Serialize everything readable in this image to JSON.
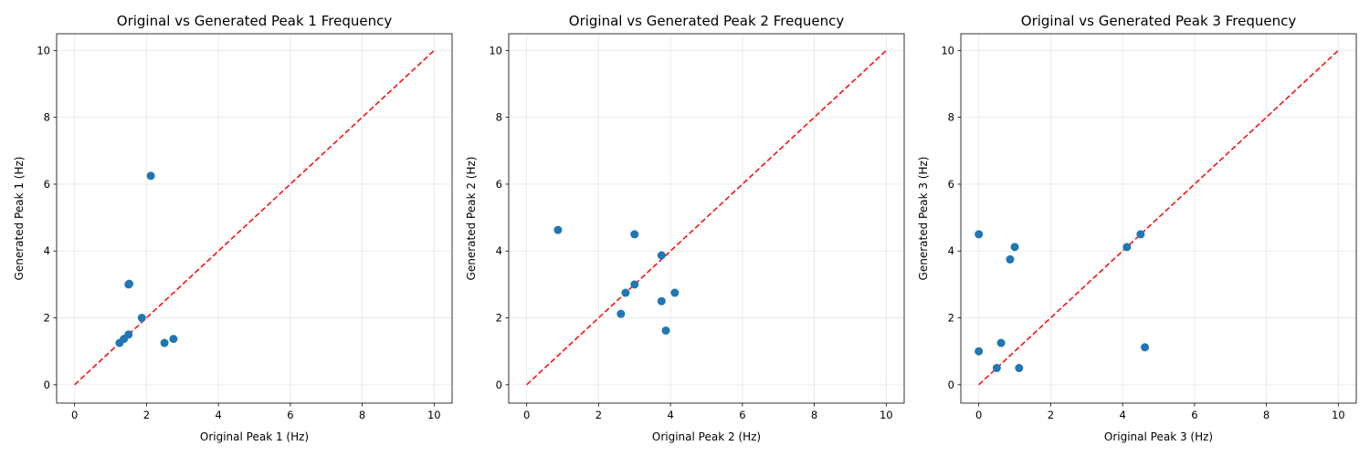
{
  "chart_data": [
    {
      "type": "scatter",
      "title": "Original vs Generated Peak 1 Frequency",
      "xlabel": "Original Peak 1 (Hz)",
      "ylabel": "Generated Peak 1 (Hz)",
      "xlim": [
        -0.5,
        10.5
      ],
      "ylim": [
        -0.55,
        10.5
      ],
      "xticks": [
        "0",
        "2",
        "4",
        "6",
        "8",
        "10"
      ],
      "yticks": [
        "0",
        "2",
        "4",
        "6",
        "8",
        "10"
      ],
      "grid": true,
      "reference_line": {
        "x": [
          0,
          10
        ],
        "y": [
          0,
          10
        ],
        "style": "dashed",
        "color": "#ff0000"
      },
      "point_color": "#1f77b4",
      "points": [
        {
          "x": 2.12,
          "y": 6.25
        },
        {
          "x": 1.5,
          "y": 3.0
        },
        {
          "x": 1.52,
          "y": 3.02
        },
        {
          "x": 1.87,
          "y": 2.0
        },
        {
          "x": 1.5,
          "y": 1.5
        },
        {
          "x": 1.37,
          "y": 1.37
        },
        {
          "x": 1.25,
          "y": 1.25
        },
        {
          "x": 2.5,
          "y": 1.25
        },
        {
          "x": 2.75,
          "y": 1.37
        }
      ]
    },
    {
      "type": "scatter",
      "title": "Original vs Generated Peak 2 Frequency",
      "xlabel": "Original Peak 2 (Hz)",
      "ylabel": "Generated Peak 2 (Hz)",
      "xlim": [
        -0.5,
        10.5
      ],
      "ylim": [
        -0.55,
        10.5
      ],
      "xticks": [
        "0",
        "2",
        "4",
        "6",
        "8",
        "10"
      ],
      "yticks": [
        "0",
        "2",
        "4",
        "6",
        "8",
        "10"
      ],
      "grid": true,
      "reference_line": {
        "x": [
          0,
          10
        ],
        "y": [
          0,
          10
        ],
        "style": "dashed",
        "color": "#ff0000"
      },
      "point_color": "#1f77b4",
      "points": [
        {
          "x": 0.87,
          "y": 4.63
        },
        {
          "x": 3.0,
          "y": 4.5
        },
        {
          "x": 3.75,
          "y": 3.87
        },
        {
          "x": 3.0,
          "y": 3.0
        },
        {
          "x": 2.75,
          "y": 2.75
        },
        {
          "x": 4.12,
          "y": 2.75
        },
        {
          "x": 3.75,
          "y": 2.5
        },
        {
          "x": 2.62,
          "y": 2.12
        },
        {
          "x": 3.87,
          "y": 1.62
        }
      ]
    },
    {
      "type": "scatter",
      "title": "Original vs Generated Peak 3 Frequency",
      "xlabel": "Original Peak 3 (Hz)",
      "ylabel": "Generated Peak 3 (Hz)",
      "xlim": [
        -0.5,
        10.5
      ],
      "ylim": [
        -0.55,
        10.5
      ],
      "xticks": [
        "0",
        "2",
        "4",
        "6",
        "8",
        "10"
      ],
      "yticks": [
        "0",
        "2",
        "4",
        "6",
        "8",
        "10"
      ],
      "grid": true,
      "reference_line": {
        "x": [
          0,
          10
        ],
        "y": [
          0,
          10
        ],
        "style": "dashed",
        "color": "#ff0000"
      },
      "point_color": "#1f77b4",
      "points": [
        {
          "x": 0.0,
          "y": 4.5
        },
        {
          "x": 1.0,
          "y": 4.12
        },
        {
          "x": 0.87,
          "y": 3.75
        },
        {
          "x": 4.12,
          "y": 4.12
        },
        {
          "x": 4.5,
          "y": 4.5
        },
        {
          "x": 0.0,
          "y": 1.0
        },
        {
          "x": 0.62,
          "y": 1.25
        },
        {
          "x": 4.62,
          "y": 1.12
        },
        {
          "x": 0.5,
          "y": 0.5
        },
        {
          "x": 1.12,
          "y": 0.5
        }
      ]
    }
  ]
}
